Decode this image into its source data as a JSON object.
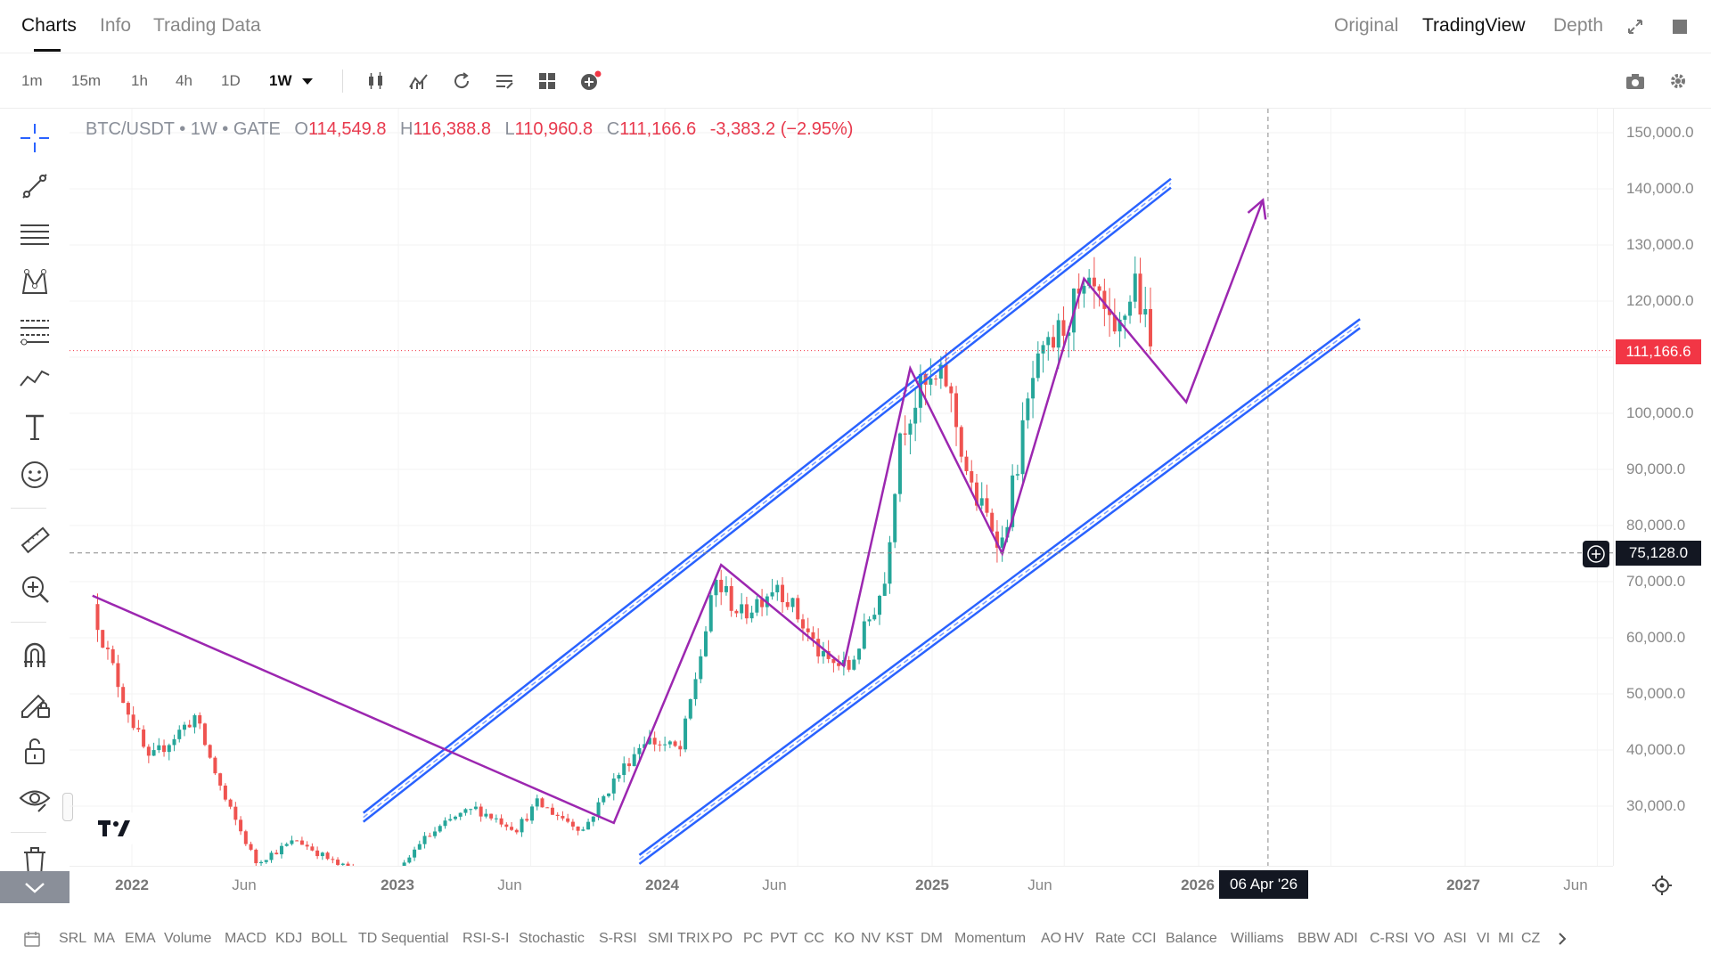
{
  "header": {
    "tabs": [
      {
        "label": "Charts",
        "active": true
      },
      {
        "label": "Info",
        "active": false
      },
      {
        "label": "Trading Data",
        "active": false
      }
    ],
    "views": [
      {
        "label": "Original",
        "active": false
      },
      {
        "label": "TradingView",
        "active": true
      },
      {
        "label": "Depth",
        "active": false
      }
    ],
    "icons": [
      "fullscreen-icon",
      "square-icon"
    ]
  },
  "toolbar": {
    "timeframes": [
      {
        "label": "1m",
        "active": false
      },
      {
        "label": "15m",
        "active": false
      },
      {
        "label": "1h",
        "active": false
      },
      {
        "label": "4h",
        "active": false
      },
      {
        "label": "1D",
        "active": false
      },
      {
        "label": "1W",
        "active": true
      }
    ],
    "icons": [
      "candle-type-icon",
      "indicators-icon",
      "replay-icon",
      "template-icon",
      "layout-grid-icon",
      "add-indicator-icon",
      "camera-icon",
      "settings-icon"
    ]
  },
  "legend": {
    "symbol": "BTC/USDT • 1W • GATE",
    "open_key": "O",
    "open": "114,549.8",
    "high_key": "H",
    "high": "116,388.8",
    "low_key": "L",
    "low": "110,960.8",
    "close_key": "C",
    "close": "111,166.6",
    "change": "-3,383.2 (−2.95%)"
  },
  "price_axis": {
    "labels": [
      "150,000.0",
      "140,000.0",
      "130,000.0",
      "120,000.0",
      "100,000.0",
      "90,000.0",
      "80,000.0",
      "70,000.0",
      "60,000.0",
      "50,000.0",
      "40,000.0",
      "30,000.0"
    ],
    "last_price": "111,166.6",
    "crosshair_price": "75,128.0"
  },
  "time_axis": {
    "labels": [
      {
        "text": "2022",
        "year": true
      },
      {
        "text": "Jun",
        "year": false
      },
      {
        "text": "2023",
        "year": true
      },
      {
        "text": "Jun",
        "year": false
      },
      {
        "text": "2024",
        "year": true
      },
      {
        "text": "Jun",
        "year": false
      },
      {
        "text": "2025",
        "year": true
      },
      {
        "text": "Jun",
        "year": false
      },
      {
        "text": "2026",
        "year": true
      },
      {
        "text": "2027",
        "year": true
      },
      {
        "text": "Jun",
        "year": false
      }
    ],
    "crosshair_date": "06 Apr '26"
  },
  "indicators": [
    "SRL",
    "MA",
    "EMA",
    "Volume",
    "MACD",
    "KDJ",
    "BOLL",
    "TD Sequential",
    "RSI-S-I",
    "Stochastic",
    "S-RSI",
    "SMI",
    "TRIX",
    "PO",
    "PC",
    "PVT",
    "CC",
    "KO",
    "NV",
    "KST",
    "DM",
    "Momentum",
    "AO",
    "HV",
    "Rate",
    "CCI",
    "Balance",
    "Williams",
    "BBW",
    "ADI",
    "C-RSI",
    "VO",
    "ASI",
    "VI",
    "MI",
    "CZ"
  ],
  "colors": {
    "up": "#26a69a",
    "down": "#ef5350",
    "channel": "#2962ff",
    "pattern": "#9c27b0",
    "last_price": "#f23645",
    "crosshair": "#131722"
  },
  "chart_data": {
    "type": "candlestick",
    "symbol": "BTC/USDT",
    "interval": "1W",
    "exchange": "GATE",
    "ylim": [
      20000,
      155000
    ],
    "xlim": [
      "2021-11",
      "2027-08"
    ],
    "last_price": 111166.6,
    "crosshair": {
      "price": 75128.0,
      "date": "2026-04-06"
    },
    "price_path": [
      [
        "2021-11-08",
        66000
      ],
      [
        "2021-11-29",
        57000
      ],
      [
        "2021-12-27",
        47000
      ],
      [
        "2022-01-24",
        38000
      ],
      [
        "2022-03-28",
        46000
      ],
      [
        "2022-05-09",
        31000
      ],
      [
        "2022-06-20",
        20000
      ],
      [
        "2022-08-15",
        24000
      ],
      [
        "2022-10-10",
        19500
      ],
      [
        "2022-12-26",
        16800
      ],
      [
        "2023-01-30",
        23500
      ],
      [
        "2023-03-20",
        28000
      ],
      [
        "2023-04-17",
        29500
      ],
      [
        "2023-06-12",
        26000
      ],
      [
        "2023-07-10",
        30500
      ],
      [
        "2023-09-11",
        25800
      ],
      [
        "2023-10-23",
        34500
      ],
      [
        "2023-12-04",
        42000
      ],
      [
        "2024-01-22",
        40000
      ],
      [
        "2024-03-11",
        70000
      ],
      [
        "2024-04-15",
        64000
      ],
      [
        "2024-06-03",
        70000
      ],
      [
        "2024-08-05",
        56000
      ],
      [
        "2024-09-09",
        54500
      ],
      [
        "2024-10-28",
        70000
      ],
      [
        "2024-11-18",
        97000
      ],
      [
        "2024-12-16",
        104000
      ],
      [
        "2025-01-20",
        106000
      ],
      [
        "2025-02-24",
        86000
      ],
      [
        "2025-04-07",
        77000
      ],
      [
        "2025-05-19",
        106000
      ],
      [
        "2025-07-14",
        119000
      ],
      [
        "2025-08-11",
        121000
      ],
      [
        "2025-09-08",
        112000
      ],
      [
        "2025-10-06",
        124000
      ],
      [
        "2025-10-27",
        111166.6
      ]
    ],
    "channel_upper": [
      [
        "2022-11-14",
        28000
      ],
      [
        "2025-11-24",
        141000
      ]
    ],
    "channel_lower": [
      [
        "2023-11-27",
        20500
      ],
      [
        "2026-08-10",
        116000
      ]
    ],
    "pattern_lines": [
      [
        [
          "2021-11-08",
          67500
        ],
        [
          "2023-10-23",
          27000
        ],
        [
          "2024-03-18",
          73000
        ],
        [
          "2024-09-02",
          55000
        ],
        [
          "2024-12-02",
          108000
        ],
        [
          "2025-04-07",
          75000
        ],
        [
          "2025-07-28",
          124000
        ],
        [
          "2025-12-15",
          102000
        ],
        [
          "2026-03-30",
          138000
        ]
      ]
    ],
    "annotations": [
      "projection-arrow"
    ]
  }
}
